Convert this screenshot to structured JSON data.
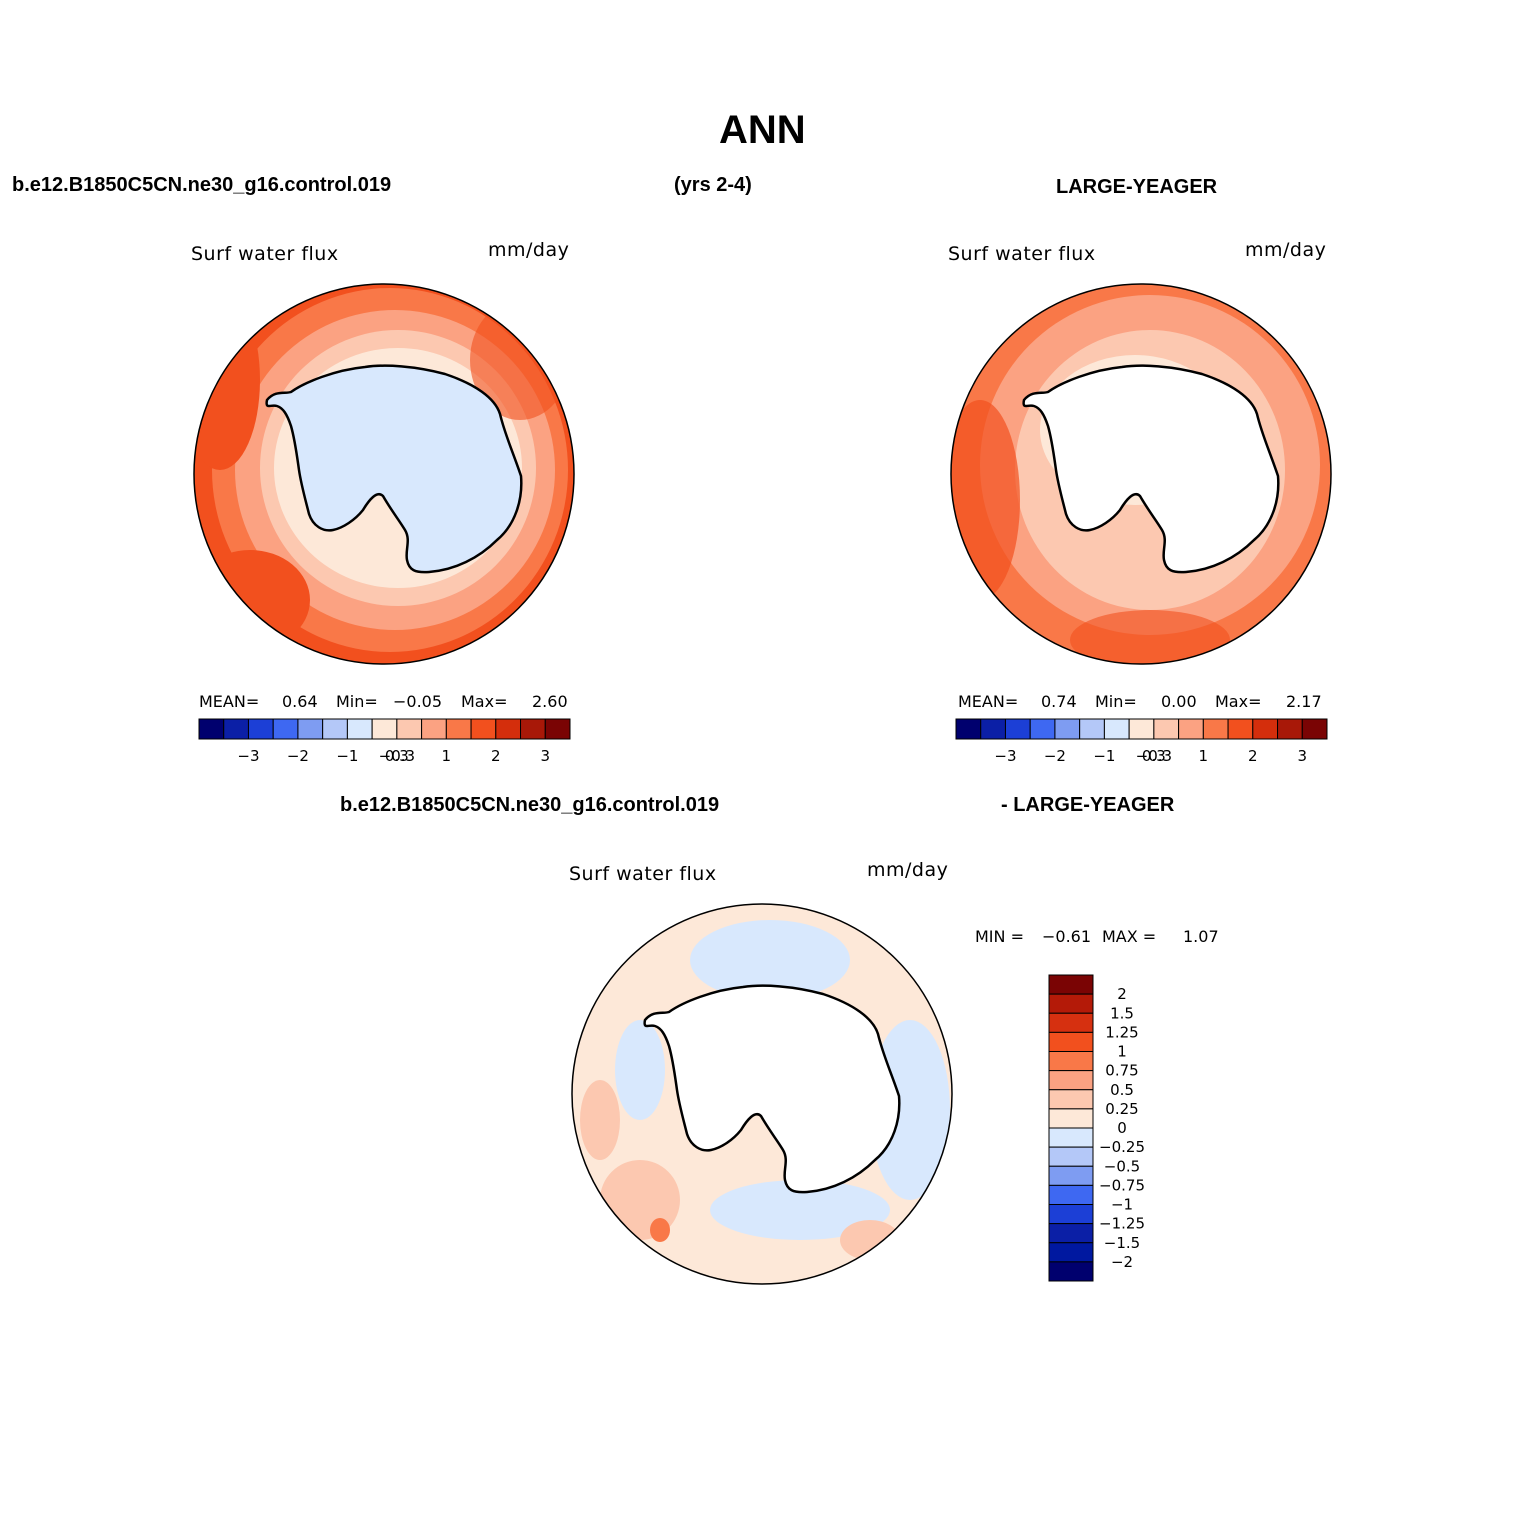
{
  "header": {
    "title": "ANN",
    "case_name": "b.e12.B1850C5CN.ne30_g16.control.019",
    "years": "(yrs 2-4)",
    "obs_name": "LARGE-YEAGER",
    "diff_case": "b.e12.B1850C5CN.ne30_g16.control.019",
    "diff_obs": "- LARGE-YEAGER"
  },
  "panels": [
    {
      "variable": "Surf water flux",
      "units": "mm/day",
      "mean_label": "MEAN=",
      "mean": "0.64",
      "min_label": "Min=",
      "min": "−0.05",
      "max_label": "Max=",
      "max": "2.60"
    },
    {
      "variable": "Surf water flux",
      "units": "mm/day",
      "mean_label": "MEAN=",
      "mean": "0.74",
      "min_label": "Min=",
      "min": "0.00",
      "max_label": "Max=",
      "max": "2.17"
    },
    {
      "variable": "Surf water flux",
      "units": "mm/day",
      "min_label": "MIN =",
      "min": "−0.61",
      "max_label": "MAX =",
      "max": "1.07"
    }
  ],
  "colorbar_abs": {
    "colors": [
      "#00006e",
      "#0b1fa6",
      "#1c3fd6",
      "#3e68f2",
      "#7e9cf2",
      "#b4c8f8",
      "#d8e8fd",
      "#fde8d8",
      "#fcc8b0",
      "#fba282",
      "#f97848",
      "#f2501e",
      "#d42e0c",
      "#a81808",
      "#7a0404"
    ],
    "ticks": [
      "−3",
      "−2",
      "−1",
      "−0.3",
      "0.3",
      "1",
      "2",
      "3"
    ]
  },
  "colorbar_diff": {
    "colors": [
      "#7a0404",
      "#b41a08",
      "#d63010",
      "#f2501e",
      "#f97848",
      "#fba282",
      "#fcc8b0",
      "#fde8d8",
      "#d8e8fd",
      "#b4c8f8",
      "#7e9cf2",
      "#3e68f2",
      "#1c3fd6",
      "#0b1fa6",
      "#0018a0",
      "#00006e"
    ],
    "ticks": [
      "2",
      "1.5",
      "1.25",
      "1",
      "0.75",
      "0.5",
      "0.25",
      "0",
      "−0.25",
      "−0.5",
      "−0.75",
      "−1",
      "−1.25",
      "−1.5",
      "−2"
    ]
  }
}
